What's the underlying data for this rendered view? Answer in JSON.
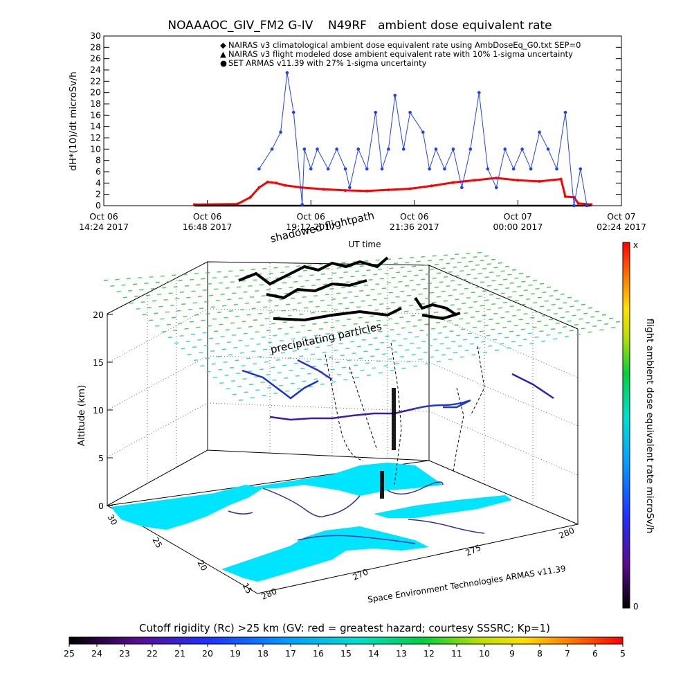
{
  "colors": {
    "nairas_clim": "#ff0000",
    "nairas_flight": "#000000",
    "armas": "#1f3fff",
    "land": "#ffffff",
    "water": "#00e5ff",
    "grid_dots": "#32d2c0"
  },
  "chart_data": [
    {
      "type": "line",
      "title": "NOAAAOC_GIV_FM2 G-IV    N49RF   ambient dose equivalent rate",
      "ylabel": "dH*(10)/dt microSv/h",
      "xlabel": "UT time",
      "ylim": [
        0,
        30
      ],
      "yticks": [
        "0",
        "2",
        "4",
        "6",
        "8",
        "10",
        "12",
        "14",
        "16",
        "18",
        "20",
        "22",
        "24",
        "26",
        "28",
        "30"
      ],
      "xticks": [
        {
          "l1": "Oct 06",
          "l2": "14:24 2017"
        },
        {
          "l1": "Oct 06",
          "l2": "16:48 2017"
        },
        {
          "l1": "Oct 06",
          "l2": "19:12 2017"
        },
        {
          "l1": "Oct 06",
          "l2": "21:36 2017"
        },
        {
          "l1": "Oct 07",
          "l2": "00:00 2017"
        },
        {
          "l1": "Oct 07",
          "l2": "02:24 2017"
        }
      ],
      "xrange_hours": [
        14.4,
        26.4
      ],
      "legend": [
        {
          "symbol": "◆",
          "text": "NAIRAS v3 climatological ambient dose equivalent rate using AmbDoseEq_G0.txt SEP=0"
        },
        {
          "symbol": "▲",
          "text": "NAIRAS v3 flight modeled dose ambient equivalent rate with 10% 1-sigma uncertainty"
        },
        {
          "symbol": "●",
          "text": "SET ARMAS v11.39 with 27% 1-sigma uncertainty"
        }
      ],
      "series": [
        {
          "name": "NAIRAS v3 climatological ambient dose equivalent rate using AmbDoseEq_G0.txt SEP=0",
          "x": [
            16.5,
            17.5,
            17.8,
            18.0,
            18.2,
            18.4,
            18.6,
            19.0,
            19.5,
            20.0,
            20.5,
            21.0,
            21.5,
            22.0,
            22.5,
            23.0,
            23.5,
            24.0,
            24.5,
            25.0,
            25.1,
            25.3,
            25.4,
            25.7
          ],
          "y": [
            0.2,
            0.3,
            1.5,
            3.2,
            4.2,
            4.0,
            3.6,
            3.2,
            2.9,
            2.7,
            2.6,
            2.8,
            3.0,
            3.5,
            4.1,
            4.5,
            4.9,
            4.5,
            4.3,
            4.7,
            1.6,
            1.5,
            0.4,
            0.2
          ]
        },
        {
          "name": "NAIRAS v3 flight modeled dose ambient equivalent rate with 10% 1-sigma uncertainty",
          "x": [
            16.5,
            25.7
          ],
          "y": [
            0.0,
            0.0
          ]
        },
        {
          "name": "SET ARMAS v11.39 with 27% 1-sigma uncertainty",
          "x": [
            18.0,
            18.3,
            18.5,
            18.65,
            18.8,
            19.0,
            19.05,
            19.2,
            19.35,
            19.6,
            19.8,
            20.0,
            20.1,
            20.3,
            20.5,
            20.7,
            20.85,
            21.0,
            21.15,
            21.35,
            21.5,
            21.8,
            21.95,
            22.1,
            22.3,
            22.5,
            22.7,
            22.9,
            23.1,
            23.3,
            23.5,
            23.7,
            23.9,
            24.1,
            24.3,
            24.5,
            24.7,
            24.9,
            25.1,
            25.3,
            25.45,
            25.6
          ],
          "y": [
            6.5,
            10.0,
            13.0,
            23.5,
            16.5,
            0.2,
            10.0,
            6.5,
            10.0,
            6.5,
            10.0,
            6.5,
            3.2,
            10.0,
            6.5,
            16.5,
            6.5,
            10.0,
            19.5,
            10.0,
            16.5,
            13.0,
            6.5,
            10.0,
            6.5,
            10.0,
            3.2,
            10.0,
            20.0,
            6.5,
            3.2,
            10.0,
            6.5,
            10.0,
            6.5,
            13.0,
            10.0,
            6.5,
            16.5,
            0.0,
            6.5,
            0.0
          ]
        }
      ]
    },
    {
      "type": "scatter",
      "annotations": [
        "shadowed flightpath",
        "precipitating particles"
      ],
      "zlabel": "Altitude (km)",
      "zticks": [
        "0",
        "5",
        "10",
        "15",
        "20"
      ],
      "lat_ticks": [
        "15",
        "20",
        "25",
        "30"
      ],
      "lon_ticks": [
        "280",
        "270",
        "275",
        "280"
      ],
      "credit": "Space Environment Technologies ARMAS v11.39",
      "colorbar": {
        "label": "flight ambient dose equivalent rate microSv/h",
        "top": "x",
        "bottom": "0"
      }
    },
    {
      "type": "heatmap",
      "title": "Cutoff rigidity (Rc) >25 km (GV: red = greatest hazard; courtesy SSSRC; Kp=1)",
      "ticks": [
        "25",
        "24",
        "23",
        "22",
        "21",
        "20",
        "19",
        "18",
        "17",
        "16",
        "15",
        "14",
        "13",
        "12",
        "11",
        "10",
        "9",
        "8",
        "7",
        "6",
        "5"
      ]
    }
  ]
}
